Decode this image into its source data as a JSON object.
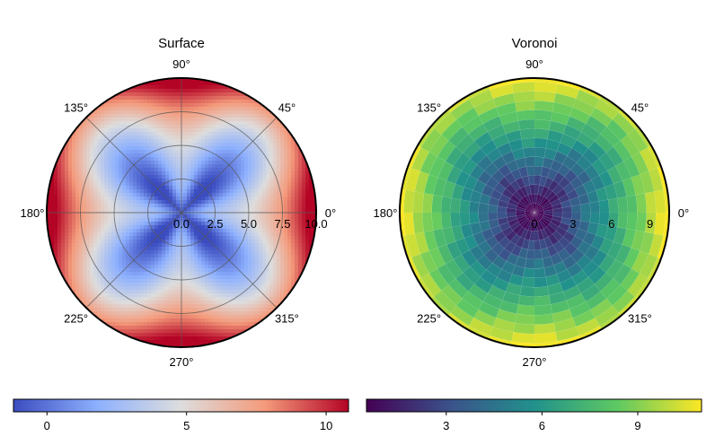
{
  "chart_data": [
    {
      "type": "heatmap",
      "projection": "polar",
      "title": "Surface",
      "angle_ticks": [
        "0°",
        "45°",
        "90°",
        "135°",
        "180°",
        "225°",
        "270°",
        "315°"
      ],
      "angle_values": [
        0,
        45,
        90,
        135,
        180,
        225,
        270,
        315
      ],
      "radial_ticks": [
        "0.0",
        "2.5",
        "5.0",
        "7.5",
        "10.0"
      ],
      "radial_values": [
        0,
        2.5,
        5,
        7.5,
        10
      ],
      "rlim": [
        0,
        10
      ],
      "grid": true,
      "colormap": "coolwarm",
      "colormap_stops": [
        "#3b4cc0",
        "#8db0fe",
        "#dddddd",
        "#f49a7b",
        "#b40426"
      ],
      "colorbar": {
        "ticks": [
          "0",
          "5",
          "10"
        ],
        "values": [
          0,
          5,
          10
        ],
        "range": [
          -1.2,
          10.8
        ],
        "placement": "bottom"
      }
    },
    {
      "type": "heatmap",
      "projection": "polar",
      "title": "Voronoi",
      "angle_ticks": [
        "0°",
        "45°",
        "90°",
        "135°",
        "180°",
        "225°",
        "270°",
        "315°"
      ],
      "angle_values": [
        0,
        45,
        90,
        135,
        180,
        225,
        270,
        315
      ],
      "radial_ticks": [
        "0",
        "3",
        "6",
        "9"
      ],
      "radial_values": [
        0,
        3,
        6,
        9
      ],
      "rlim": [
        0,
        10.5
      ],
      "grid": false,
      "colormap": "viridis",
      "colormap_stops": [
        "#440154",
        "#3b528b",
        "#21918c",
        "#5ec962",
        "#fde725"
      ],
      "colorbar": {
        "ticks": [
          "3",
          "6",
          "9"
        ],
        "values": [
          3,
          6,
          9
        ],
        "range": [
          0.5,
          11
        ],
        "placement": "bottom"
      }
    }
  ]
}
